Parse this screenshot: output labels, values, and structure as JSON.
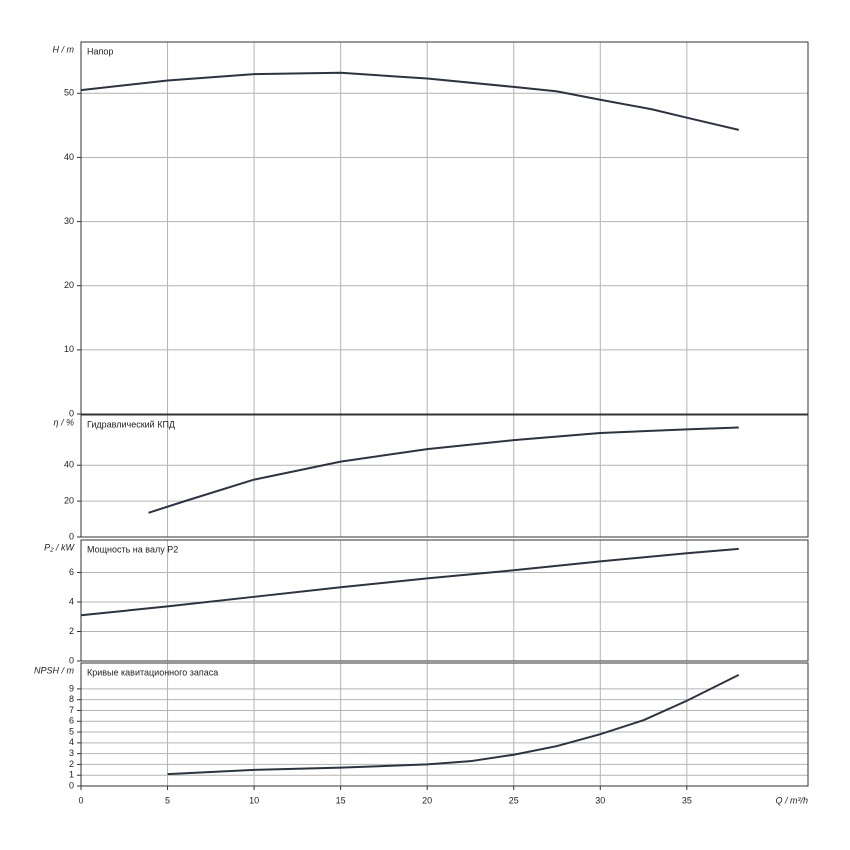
{
  "chart_data": [
    {
      "type": "line",
      "title": "Напор",
      "y_label": "H / m",
      "xlim": [
        0,
        42
      ],
      "xticks": [
        0,
        5,
        10,
        15,
        20,
        25,
        30,
        35
      ],
      "ylim": [
        0,
        58
      ],
      "yticks": [
        0,
        10,
        20,
        30,
        40,
        50
      ],
      "grid": true,
      "series": [
        {
          "color": "#2b3442",
          "x": [
            0,
            5,
            10,
            15,
            20,
            25,
            27.5,
            30,
            33,
            35,
            38
          ],
          "values": [
            50.5,
            52,
            53,
            53.2,
            52.3,
            51,
            50.3,
            49,
            47.5,
            46.2,
            44.3
          ]
        }
      ]
    },
    {
      "type": "line",
      "title": "Гидравлический КПД",
      "y_label": "η / %",
      "xlim": [
        0,
        42
      ],
      "xticks": [
        0,
        5,
        10,
        15,
        20,
        25,
        30,
        35
      ],
      "ylim": [
        0,
        68
      ],
      "yticks": [
        0,
        20,
        40
      ],
      "grid": true,
      "series": [
        {
          "color": "#2b3442",
          "x": [
            3.9,
            6,
            10,
            15,
            20,
            25,
            30,
            35,
            38
          ],
          "values": [
            13.5,
            20,
            32,
            42,
            49,
            54,
            58,
            60,
            61
          ]
        }
      ]
    },
    {
      "type": "line",
      "title": "Мощность на валу P2",
      "y_label": "P₂ / kW",
      "xlim": [
        0,
        42
      ],
      "xticks": [
        0,
        5,
        10,
        15,
        20,
        25,
        30,
        35
      ],
      "ylim": [
        0,
        8.2
      ],
      "yticks": [
        0,
        2,
        4,
        6
      ],
      "grid": true,
      "series": [
        {
          "color": "#2b3442",
          "x": [
            0,
            5,
            10,
            15,
            20,
            25,
            30,
            35,
            38
          ],
          "values": [
            3.1,
            3.7,
            4.35,
            5.0,
            5.6,
            6.15,
            6.75,
            7.3,
            7.6
          ]
        }
      ]
    },
    {
      "type": "line",
      "title": "Кривые кавитационного запаса",
      "y_label": "NPSH / m",
      "x_label": "Q / m³/h",
      "xlim": [
        0,
        42
      ],
      "xticks": [
        0,
        5,
        10,
        15,
        20,
        25,
        30,
        35
      ],
      "ylim": [
        0,
        11.4
      ],
      "yticks": [
        0,
        1,
        2,
        3,
        4,
        5,
        6,
        7,
        8,
        9
      ],
      "grid": true,
      "series": [
        {
          "color": "#2b3442",
          "x": [
            5,
            10,
            15,
            20,
            22.5,
            25,
            27.5,
            30,
            32.5,
            35,
            38
          ],
          "values": [
            1.1,
            1.5,
            1.7,
            2.0,
            2.3,
            2.9,
            3.7,
            4.8,
            6.1,
            7.9,
            10.3
          ]
        }
      ]
    }
  ]
}
